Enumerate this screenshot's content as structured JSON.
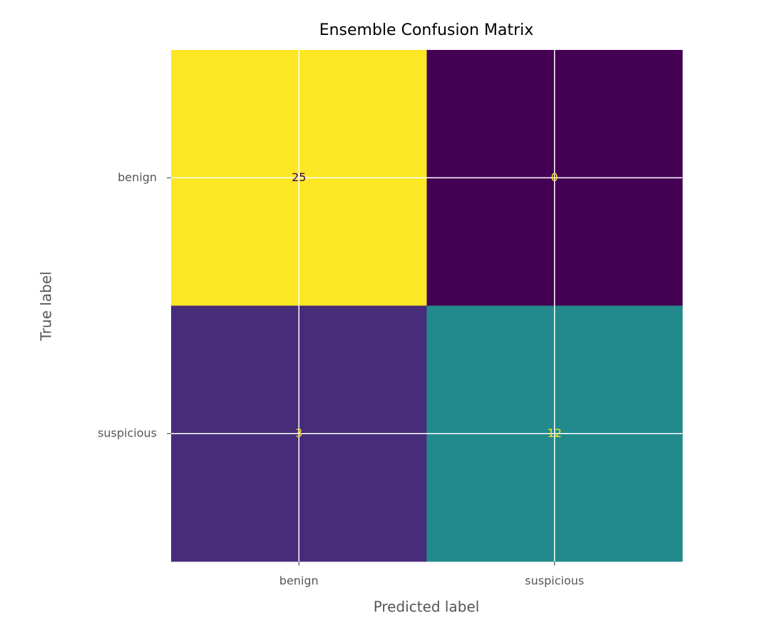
{
  "chart_data": {
    "type": "heatmap",
    "title": "Ensemble Confusion Matrix",
    "x_label": "Predicted label",
    "y_label": "True label",
    "x_categories": [
      "benign",
      "suspicious"
    ],
    "y_categories": [
      "benign",
      "suspicious"
    ],
    "values": [
      [
        25,
        0
      ],
      [
        3,
        12
      ]
    ],
    "colors": [
      [
        "#fde725",
        "#440154"
      ],
      [
        "#472c7a",
        "#228a8d"
      ]
    ],
    "text_colors": [
      [
        "#440154",
        "#fde725"
      ],
      [
        "#fde725",
        "#fde725"
      ]
    ],
    "grid": true
  }
}
